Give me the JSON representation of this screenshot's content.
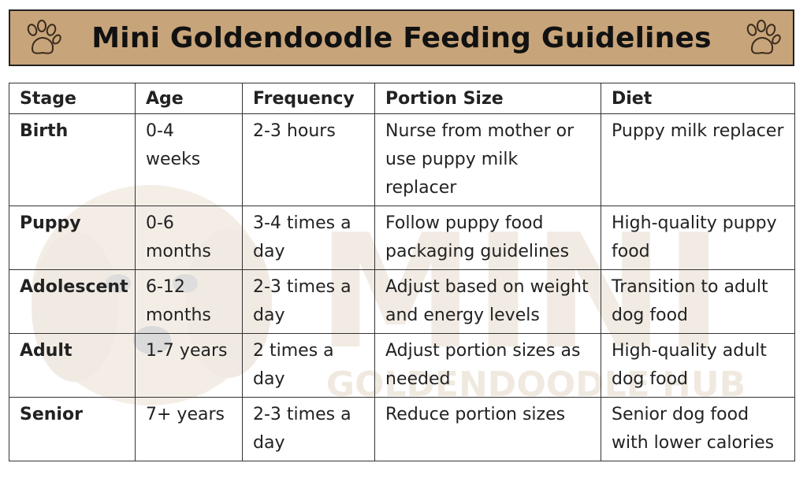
{
  "header": {
    "title": "Mini Goldendoodle Feeding Guidelines",
    "background_color": "#c8a47a",
    "left_icon": "paw-print-icon",
    "right_icon": "paw-print-icon"
  },
  "watermark": {
    "line1": "MINI",
    "line2": "GOLDENDOODLE HUB",
    "icon": "goldendoodle-face-icon"
  },
  "table": {
    "headers": [
      "Stage",
      "Age",
      "Frequency",
      "Portion Size",
      "Diet"
    ],
    "rows": [
      [
        "Birth",
        "0-4 weeks",
        "2-3 hours",
        "Nurse from mother or use puppy milk replacer",
        "Puppy milk replacer"
      ],
      [
        "Puppy",
        "0-6 months",
        "3-4 times a day",
        "Follow puppy food packaging guidelines",
        "High-quality puppy food"
      ],
      [
        "Adolescent",
        "6-12 months",
        "2-3 times a day",
        "Adjust based on weight and energy levels",
        "Transition to adult dog food"
      ],
      [
        "Adult",
        "1-7 years",
        "2 times a day",
        "Adjust portion sizes as needed",
        "High-quality adult dog food"
      ],
      [
        "Senior",
        "7+ years",
        "2-3 times a day",
        "Reduce portion sizes",
        "Senior dog food with lower calories"
      ]
    ]
  }
}
